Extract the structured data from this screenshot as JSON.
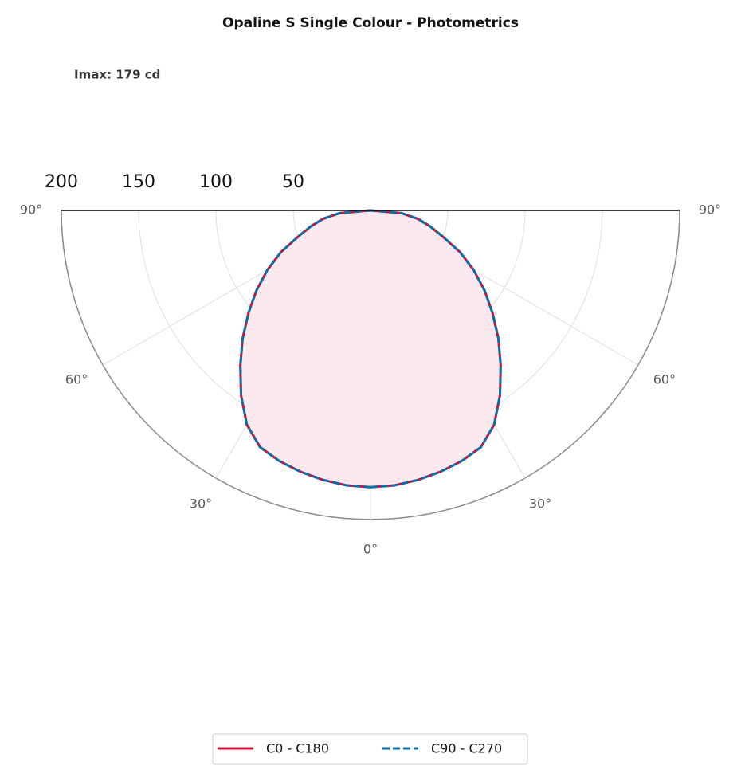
{
  "chart_data": {
    "type": "polar",
    "title": "Opaline S Single Colour - Photometrics",
    "annotation": "Imax: 179 cd",
    "x": [
      0,
      5,
      10,
      15,
      20,
      25,
      30,
      35,
      40,
      45,
      50,
      55,
      60,
      65,
      70,
      75,
      80,
      85,
      90
    ],
    "series": [
      {
        "name": "C0 - C180",
        "color": "#d0103a",
        "dash": false,
        "values": [
          179,
          178.5,
          177,
          175,
          172.5,
          169,
          160,
          146,
          131,
          117,
          103,
          90,
          77,
          64,
          50,
          40,
          31,
          20,
          0
        ]
      },
      {
        "name": "C90 - C270",
        "color": "#0a6ea8",
        "dash": true,
        "values": [
          179,
          178.5,
          177,
          175,
          172.5,
          169,
          160,
          146,
          131,
          117,
          103,
          90,
          77,
          64,
          50,
          40,
          31,
          20,
          0
        ]
      }
    ],
    "fill": "#fbe9ee",
    "rlim": [
      0,
      200
    ],
    "rticks": [
      50,
      100,
      150,
      200
    ],
    "thetaticks": [
      {
        "value": 0,
        "label": "0°"
      },
      {
        "value": 30,
        "label": "30°"
      },
      {
        "value": 60,
        "label": "60°"
      },
      {
        "value": 90,
        "label": "90°"
      }
    ],
    "grid": true
  }
}
